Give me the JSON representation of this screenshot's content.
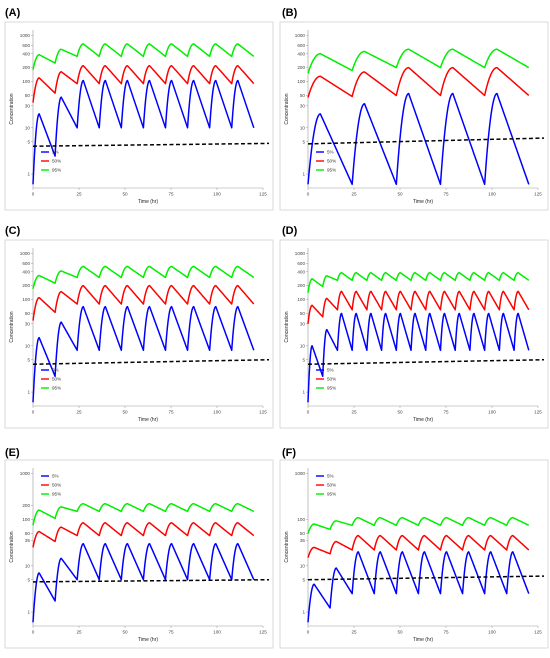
{
  "figure": {
    "panel_labels": [
      "(A)",
      "(B)",
      "(C)",
      "(D)",
      "(E)",
      "(F)"
    ]
  },
  "chart_data": [
    {
      "panel": "(A)",
      "type": "line",
      "xlabel": "Time (hr)",
      "ylabel": "Concentration",
      "xlim": [
        0,
        125
      ],
      "xticks": [
        0,
        25,
        50,
        75,
        100,
        125
      ],
      "ylog": true,
      "ylim": [
        0.5,
        1300
      ],
      "yticks": [
        1,
        5,
        10,
        30,
        50,
        100,
        200,
        400,
        600,
        1000
      ],
      "legend_position": "lower-left",
      "dosing_interval_hr": 12,
      "end_time_hr": 120,
      "series": [
        {
          "name": "5%",
          "color": "#0000ff",
          "trough_first": 0.6,
          "peak_first": 20,
          "trough_steady": 10,
          "peak_steady": 105
        },
        {
          "name": "50%",
          "color": "#ff0000",
          "trough_first": 35,
          "peak_first": 120,
          "trough_steady": 90,
          "peak_steady": 220
        },
        {
          "name": "95%",
          "color": "#00ee00",
          "trough_first": 180,
          "peak_first": 380,
          "trough_steady": 350,
          "peak_steady": 650
        }
      ],
      "threshold": {
        "style": "dashed",
        "color": "#000000",
        "y_start": 4,
        "y_end": 4.6
      }
    },
    {
      "panel": "(B)",
      "type": "line",
      "xlabel": "Time (hr)",
      "ylabel": "Concentration",
      "xlim": [
        0,
        125
      ],
      "xticks": [
        0,
        25,
        50,
        75,
        100,
        125
      ],
      "ylog": true,
      "ylim": [
        0.5,
        1300
      ],
      "yticks": [
        1,
        5,
        10,
        30,
        50,
        100,
        200,
        400,
        600,
        1000
      ],
      "legend_position": "lower-left",
      "dosing_interval_hr": 24,
      "end_time_hr": 120,
      "series": [
        {
          "name": "5%",
          "color": "#0000ff",
          "trough_first": 0.6,
          "peak_first": 20,
          "trough_steady": 0.6,
          "peak_steady": 55
        },
        {
          "name": "50%",
          "color": "#ff0000",
          "trough_first": 45,
          "peak_first": 130,
          "trough_steady": 50,
          "peak_steady": 200
        },
        {
          "name": "95%",
          "color": "#00ee00",
          "trough_first": 150,
          "peak_first": 400,
          "trough_steady": 200,
          "peak_steady": 500
        }
      ],
      "threshold": {
        "style": "dashed",
        "color": "#000000",
        "y_start": 4.5,
        "y_end": 6
      }
    },
    {
      "panel": "(C)",
      "type": "line",
      "xlabel": "Time (hr)",
      "ylabel": "Concentration",
      "xlim": [
        0,
        125
      ],
      "xticks": [
        0,
        25,
        50,
        75,
        100,
        125
      ],
      "ylog": true,
      "ylim": [
        0.5,
        1300
      ],
      "yticks": [
        1,
        5,
        10,
        30,
        50,
        100,
        200,
        400,
        600,
        1000
      ],
      "legend_position": "lower-left",
      "dosing_interval_hr": 12,
      "end_time_hr": 120,
      "series": [
        {
          "name": "5%",
          "color": "#0000ff",
          "trough_first": 0.6,
          "peak_first": 15,
          "trough_steady": 8,
          "peak_steady": 70
        },
        {
          "name": "50%",
          "color": "#ff0000",
          "trough_first": 35,
          "peak_first": 110,
          "trough_steady": 80,
          "peak_steady": 200
        },
        {
          "name": "95%",
          "color": "#00ee00",
          "trough_first": 170,
          "peak_first": 330,
          "trough_steady": 300,
          "peak_steady": 520
        }
      ],
      "threshold": {
        "style": "dashed",
        "color": "#000000",
        "y_start": 4,
        "y_end": 5
      }
    },
    {
      "panel": "(D)",
      "type": "line",
      "xlabel": "Time (hr)",
      "ylabel": "Concentration",
      "xlim": [
        0,
        125
      ],
      "xticks": [
        0,
        25,
        50,
        75,
        100,
        125
      ],
      "ylog": true,
      "ylim": [
        0.5,
        1300
      ],
      "yticks": [
        1,
        5,
        10,
        30,
        50,
        100,
        200,
        400,
        600,
        1000
      ],
      "legend_position": "lower-left",
      "dosing_interval_hr": 8,
      "end_time_hr": 120,
      "series": [
        {
          "name": "5%",
          "color": "#0000ff",
          "trough_first": 0.6,
          "peak_first": 10,
          "trough_steady": 8,
          "peak_steady": 50
        },
        {
          "name": "50%",
          "color": "#ff0000",
          "trough_first": 30,
          "peak_first": 75,
          "trough_steady": 60,
          "peak_steady": 150
        },
        {
          "name": "95%",
          "color": "#00ee00",
          "trough_first": 140,
          "peak_first": 280,
          "trough_steady": 260,
          "peak_steady": 380
        }
      ],
      "threshold": {
        "style": "dashed",
        "color": "#000000",
        "y_start": 4,
        "y_end": 5
      }
    },
    {
      "panel": "(E)",
      "type": "line",
      "xlabel": "Time (hr)",
      "ylabel": "Concentration",
      "xlim": [
        0,
        125
      ],
      "xticks": [
        0,
        25,
        50,
        75,
        100,
        125
      ],
      "ylog": true,
      "ylim": [
        0.5,
        1300
      ],
      "yticks": [
        1,
        5,
        10,
        35,
        50,
        100,
        200,
        1000
      ],
      "legend_position": "top-left",
      "dosing_interval_hr": 12,
      "end_time_hr": 120,
      "series": [
        {
          "name": "5%",
          "color": "#0000ff",
          "trough_first": 0.6,
          "peak_first": 7,
          "trough_steady": 5,
          "peak_steady": 30
        },
        {
          "name": "50%",
          "color": "#ff0000",
          "trough_first": 25,
          "peak_first": 55,
          "trough_steady": 45,
          "peak_steady": 85
        },
        {
          "name": "95%",
          "color": "#00ee00",
          "trough_first": 75,
          "peak_first": 160,
          "trough_steady": 150,
          "peak_steady": 220
        }
      ],
      "threshold": {
        "style": "dashed",
        "color": "#000000",
        "y_start": 4.5,
        "y_end": 5
      }
    },
    {
      "panel": "(F)",
      "type": "line",
      "xlabel": "Time (hr)",
      "ylabel": "Concentration",
      "xlim": [
        0,
        125
      ],
      "xticks": [
        0,
        25,
        50,
        75,
        100,
        125
      ],
      "ylog": true,
      "ylim": [
        0.5,
        1300
      ],
      "yticks": [
        1,
        5,
        10,
        35,
        50,
        100,
        1000
      ],
      "legend_position": "top-left",
      "dosing_interval_hr": 12,
      "end_time_hr": 120,
      "series": [
        {
          "name": "5%",
          "color": "#0000ff",
          "trough_first": 0.6,
          "peak_first": 4,
          "trough_steady": 2.5,
          "peak_steady": 20
        },
        {
          "name": "50%",
          "color": "#ff0000",
          "trough_first": 15,
          "peak_first": 25,
          "trough_steady": 22,
          "peak_steady": 45
        },
        {
          "name": "95%",
          "color": "#00ee00",
          "trough_first": 50,
          "peak_first": 80,
          "trough_steady": 75,
          "peak_steady": 110
        }
      ],
      "threshold": {
        "style": "dashed",
        "color": "#000000",
        "y_start": 5,
        "y_end": 6
      }
    }
  ]
}
